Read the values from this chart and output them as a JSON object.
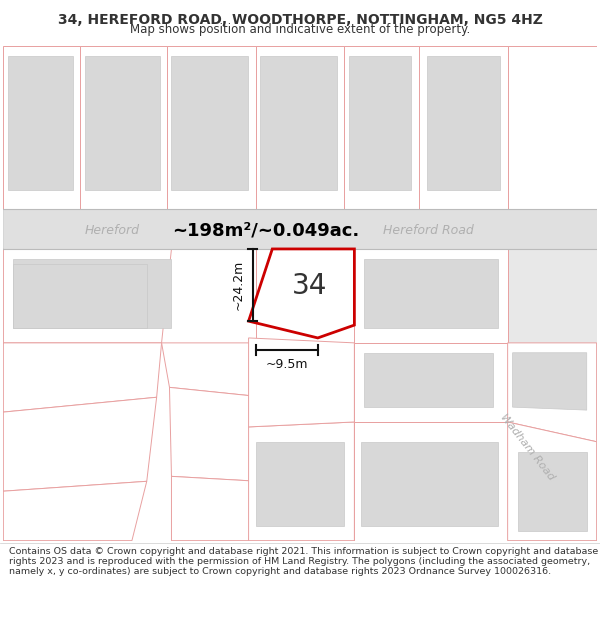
{
  "title": "34, HEREFORD ROAD, WOODTHORPE, NOTTINGHAM, NG5 4HZ",
  "subtitle": "Map shows position and indicative extent of the property.",
  "footer": "Contains OS data © Crown copyright and database right 2021. This information is subject to Crown copyright and database rights 2023 and is reproduced with the permission of HM Land Registry. The polygons (including the associated geometry, namely x, y co-ordinates) are subject to Crown copyright and database rights 2023 Ordnance Survey 100026316.",
  "area_label": "~198m²/~0.049ac.",
  "width_label": "~9.5m",
  "height_label": "~24.2m",
  "property_number": "34",
  "map_bg": "#ffffff",
  "road_bg": "#e8e8e8",
  "parcel_fill": "#f0f0f0",
  "parcel_edge": "#e8a0a0",
  "bldg_fill": "#d8d8d8",
  "bldg_edge": "#c8c8c8",
  "prop_fill": "#ffffff",
  "prop_edge": "#cc0000",
  "road_text": "#b0b0b0",
  "dim_color": "#111111",
  "text_color": "#333333",
  "title_fontsize": 10,
  "subtitle_fontsize": 8.5,
  "footer_fontsize": 6.8
}
